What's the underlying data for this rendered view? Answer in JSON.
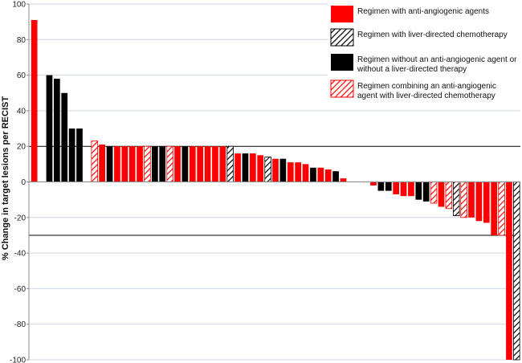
{
  "chart_data": {
    "type": "bar",
    "ylabel": "% Change in target lesions per RECIST",
    "ylim": [
      -100,
      100
    ],
    "yticks": [
      100,
      80,
      60,
      40,
      20,
      0,
      -20,
      -40,
      -60,
      -80,
      -100
    ],
    "grid": true,
    "reference_lines": [
      20,
      -30
    ],
    "legend_position": "top-right",
    "colors": {
      "anti": "#ff0000",
      "liver": "#000000",
      "none": "#000000",
      "combo": "#ff0000",
      "grid": "#cfd6e4",
      "reference": "#000000"
    },
    "series": [
      {
        "key": "anti",
        "name": "Regimen with anti-angiogenic agents"
      },
      {
        "key": "liver",
        "name": "Regimen with liver-directed chemotherapy"
      },
      {
        "key": "none",
        "name": "Regimen without an anti-angiogenic agent or without a liver-directed therapy"
      },
      {
        "key": "combo",
        "name": "Regimen combining an anti-angiogenic agent with liver-directed chemotherapy"
      }
    ],
    "bars": [
      {
        "value": 91,
        "series": "anti"
      },
      {
        "value": null,
        "series": null
      },
      {
        "value": 60,
        "series": "none"
      },
      {
        "value": 58,
        "series": "none"
      },
      {
        "value": 50,
        "series": "none"
      },
      {
        "value": 30,
        "series": "none"
      },
      {
        "value": 30,
        "series": "none"
      },
      {
        "value": null,
        "series": null
      },
      {
        "value": 23,
        "series": "combo"
      },
      {
        "value": 21,
        "series": "anti"
      },
      {
        "value": 20,
        "series": "none"
      },
      {
        "value": 20,
        "series": "anti"
      },
      {
        "value": 20,
        "series": "anti"
      },
      {
        "value": 20,
        "series": "anti"
      },
      {
        "value": 20,
        "series": "anti"
      },
      {
        "value": 20,
        "series": "combo"
      },
      {
        "value": 20,
        "series": "none"
      },
      {
        "value": 20,
        "series": "none"
      },
      {
        "value": 20,
        "series": "combo"
      },
      {
        "value": 20,
        "series": "anti"
      },
      {
        "value": 20,
        "series": "none"
      },
      {
        "value": 20,
        "series": "anti"
      },
      {
        "value": 20,
        "series": "anti"
      },
      {
        "value": 20,
        "series": "anti"
      },
      {
        "value": 20,
        "series": "anti"
      },
      {
        "value": 20,
        "series": "anti"
      },
      {
        "value": 20,
        "series": "liver"
      },
      {
        "value": 16,
        "series": "anti"
      },
      {
        "value": 16,
        "series": "none"
      },
      {
        "value": 16,
        "series": "anti"
      },
      {
        "value": 15,
        "series": "anti"
      },
      {
        "value": 14,
        "series": "liver"
      },
      {
        "value": 13,
        "series": "anti"
      },
      {
        "value": 13,
        "series": "none"
      },
      {
        "value": 11,
        "series": "anti"
      },
      {
        "value": 11,
        "series": "anti"
      },
      {
        "value": 10,
        "series": "anti"
      },
      {
        "value": 8,
        "series": "none"
      },
      {
        "value": 8,
        "series": "anti"
      },
      {
        "value": 7,
        "series": "anti"
      },
      {
        "value": 6,
        "series": "none"
      },
      {
        "value": 2,
        "series": "anti"
      },
      {
        "value": null,
        "series": null
      },
      {
        "value": null,
        "series": null
      },
      {
        "value": null,
        "series": null
      },
      {
        "value": -2,
        "series": "anti"
      },
      {
        "value": -5,
        "series": "none"
      },
      {
        "value": -5,
        "series": "none"
      },
      {
        "value": -7,
        "series": "anti"
      },
      {
        "value": -8,
        "series": "anti"
      },
      {
        "value": -8,
        "series": "anti"
      },
      {
        "value": -10,
        "series": "none"
      },
      {
        "value": -11,
        "series": "none"
      },
      {
        "value": -12,
        "series": "combo"
      },
      {
        "value": -14,
        "series": "anti"
      },
      {
        "value": -15,
        "series": "combo"
      },
      {
        "value": -19,
        "series": "liver"
      },
      {
        "value": -20,
        "series": "combo"
      },
      {
        "value": -20,
        "series": "anti"
      },
      {
        "value": -22,
        "series": "anti"
      },
      {
        "value": -23,
        "series": "anti"
      },
      {
        "value": -30,
        "series": "anti"
      },
      {
        "value": -30,
        "series": "combo"
      },
      {
        "value": -100,
        "series": "anti"
      },
      {
        "value": -100,
        "series": "liver"
      }
    ]
  }
}
